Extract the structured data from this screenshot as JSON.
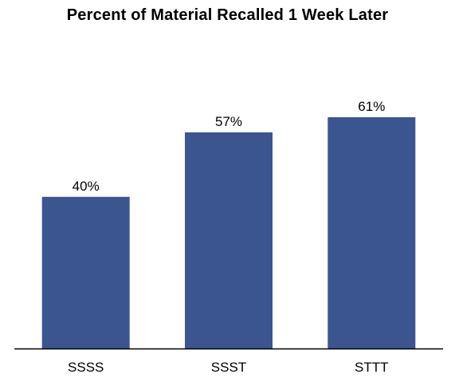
{
  "chart_data": {
    "type": "bar",
    "title": "Percent of Material Recalled 1 Week Later",
    "categories": [
      "SSSS",
      "SSST",
      "STTT"
    ],
    "values": [
      40,
      57,
      61
    ],
    "value_labels": [
      "40%",
      "57%",
      "61%"
    ],
    "xlabel": "",
    "ylabel": "",
    "ylim": [
      0,
      100
    ],
    "grid": false,
    "legend": "none",
    "bar_color": "#3b5590",
    "axis_color": "#000000"
  }
}
